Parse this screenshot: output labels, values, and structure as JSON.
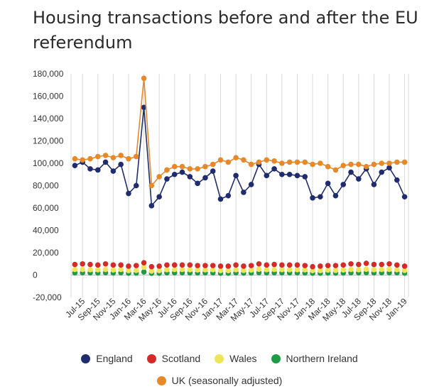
{
  "title": "Housing transactions before and after the EU referendum",
  "chart_data": {
    "type": "line",
    "categories": [
      "Jun-15",
      "Jul-15",
      "Aug-15",
      "Sep-15",
      "Oct-15",
      "Nov-15",
      "Dec-15",
      "Jan-16",
      "Feb-16",
      "Mar-16",
      "Apr-16",
      "May-16",
      "Jun-16",
      "Jul-16",
      "Aug-16",
      "Sep-16",
      "Oct-16",
      "Nov-16",
      "Dec-16",
      "Jan-17",
      "Feb-17",
      "Mar-17",
      "Apr-17",
      "May-17",
      "Jun-17",
      "Jul-17",
      "Aug-17",
      "Sep-17",
      "Oct-17",
      "Nov-17",
      "Dec-17",
      "Jan-18",
      "Feb-18",
      "Mar-18",
      "Apr-18",
      "May-18",
      "Jun-18",
      "Jul-18",
      "Aug-18",
      "Sep-18",
      "Oct-18",
      "Nov-18",
      "Dec-18",
      "Jan-19"
    ],
    "x_tick_labels": [
      "Jul-15",
      "Sep-15",
      "Nov-15",
      "Jan-16",
      "Mar-16",
      "May-16",
      "Jul-16",
      "Sep-16",
      "Nov-16",
      "Jan-17",
      "Mar-17",
      "May-17",
      "Jul-17",
      "Sep-17",
      "Nov-17",
      "Jan-18",
      "Mar-18",
      "May-18",
      "Jul-18",
      "Sep-18",
      "Nov-18",
      "Jan-19"
    ],
    "y_tick_labels": [
      "180,000",
      "160,000",
      "140,000",
      "120,000",
      "100,000",
      "80,000",
      "60,000",
      "40,000",
      "20,000",
      "0",
      "-20,000"
    ],
    "ylim": [
      -20000,
      180000
    ],
    "grid": "vertical",
    "legend_position": "bottom",
    "series": [
      {
        "name": "England",
        "color": "#1f2d6e",
        "line": true,
        "values": [
          98000,
          101000,
          95000,
          94000,
          101000,
          93000,
          99000,
          73000,
          80000,
          150000,
          62000,
          70000,
          86000,
          90000,
          92000,
          88000,
          82000,
          87000,
          93000,
          68000,
          71000,
          89000,
          74000,
          81000,
          99000,
          89000,
          95000,
          90000,
          90000,
          89000,
          88000,
          69000,
          70000,
          82000,
          71000,
          81000,
          92000,
          86000,
          95000,
          81000,
          92000,
          96000,
          85000,
          70000
        ]
      },
      {
        "name": "Scotland",
        "color": "#d42a2a",
        "line": false,
        "values": [
          9500,
          10000,
          9500,
          9000,
          10000,
          9000,
          9000,
          8000,
          8500,
          11000,
          7500,
          8000,
          9000,
          9000,
          9000,
          9000,
          8500,
          8500,
          8500,
          8000,
          8000,
          9000,
          8000,
          8500,
          10000,
          9000,
          9500,
          9000,
          9000,
          9000,
          8500,
          7500,
          8000,
          8500,
          8500,
          9000,
          10000,
          9500,
          10500,
          9500,
          9500,
          10000,
          9000,
          8000
        ]
      },
      {
        "name": "Wales",
        "color": "#efe55a",
        "line": false,
        "values": [
          5000,
          5000,
          4800,
          4700,
          5000,
          4600,
          5000,
          4000,
          4200,
          7000,
          3600,
          4000,
          4800,
          5000,
          5000,
          4800,
          4600,
          4700,
          4800,
          4000,
          4000,
          4800,
          4200,
          4500,
          5200,
          4800,
          5000,
          4900,
          4800,
          4800,
          4700,
          4000,
          4000,
          4500,
          4200,
          4600,
          5000,
          4800,
          5200,
          4800,
          5000,
          5100,
          4800,
          4200
        ]
      },
      {
        "name": "Northern Ireland",
        "color": "#1f9a47",
        "line": false,
        "values": [
          2000,
          2100,
          2000,
          1900,
          2100,
          1900,
          2100,
          1700,
          1800,
          2800,
          1600,
          1700,
          2000,
          2100,
          2100,
          2000,
          1900,
          2000,
          2000,
          1700,
          1700,
          2000,
          1800,
          1900,
          2200,
          2000,
          2100,
          2000,
          2000,
          2000,
          1900,
          1700,
          1700,
          1900,
          1800,
          1900,
          2100,
          2000,
          2200,
          2000,
          2100,
          2100,
          2000,
          1800
        ]
      },
      {
        "name": "UK (seasonally adjusted)",
        "color": "#e6892a",
        "line": true,
        "values": [
          104000,
          103000,
          104000,
          106000,
          107000,
          105000,
          107000,
          104000,
          106000,
          176000,
          80000,
          88000,
          94000,
          97000,
          97000,
          95000,
          95000,
          97000,
          99000,
          103000,
          101000,
          105000,
          103000,
          99000,
          101000,
          103000,
          102000,
          100000,
          101000,
          101000,
          101000,
          99000,
          100000,
          97000,
          94000,
          98000,
          99000,
          99000,
          97000,
          99000,
          100000,
          100000,
          101000,
          101000
        ]
      }
    ]
  },
  "legend": {
    "row1": [
      {
        "label": "England",
        "color": "#1f2d6e"
      },
      {
        "label": "Scotland",
        "color": "#d42a2a"
      },
      {
        "label": "Wales",
        "color": "#efe55a"
      },
      {
        "label": "Northern Ireland",
        "color": "#1f9a47"
      }
    ],
    "row2": [
      {
        "label": "UK (seasonally adjusted)",
        "color": "#e6892a"
      }
    ]
  }
}
